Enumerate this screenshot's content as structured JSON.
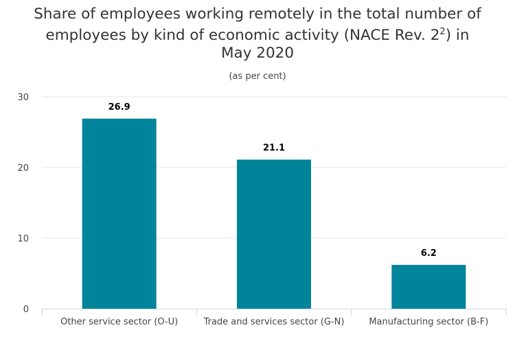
{
  "chart_data": {
    "type": "bar",
    "title_line1": "Share of employees working remotely in the total number of",
    "title_line2_pre": "employees by kind of economic activity (NACE Rev. 2",
    "title_sup": "2",
    "title_line2_post": ") in",
    "title_line3": "May 2020",
    "subtitle": "(as per cent)",
    "categories": [
      "Other service sector (O-U)",
      "Trade and services sector (G-N)",
      "Manufacturing sector (B-F)"
    ],
    "values": [
      26.9,
      21.1,
      6.2
    ],
    "data_labels": [
      "26.9",
      "21.1",
      "6.2"
    ],
    "yticks": [
      0,
      10,
      20,
      30
    ],
    "ylim": [
      0,
      30
    ],
    "grid": true,
    "bar_color": "#00849a"
  }
}
